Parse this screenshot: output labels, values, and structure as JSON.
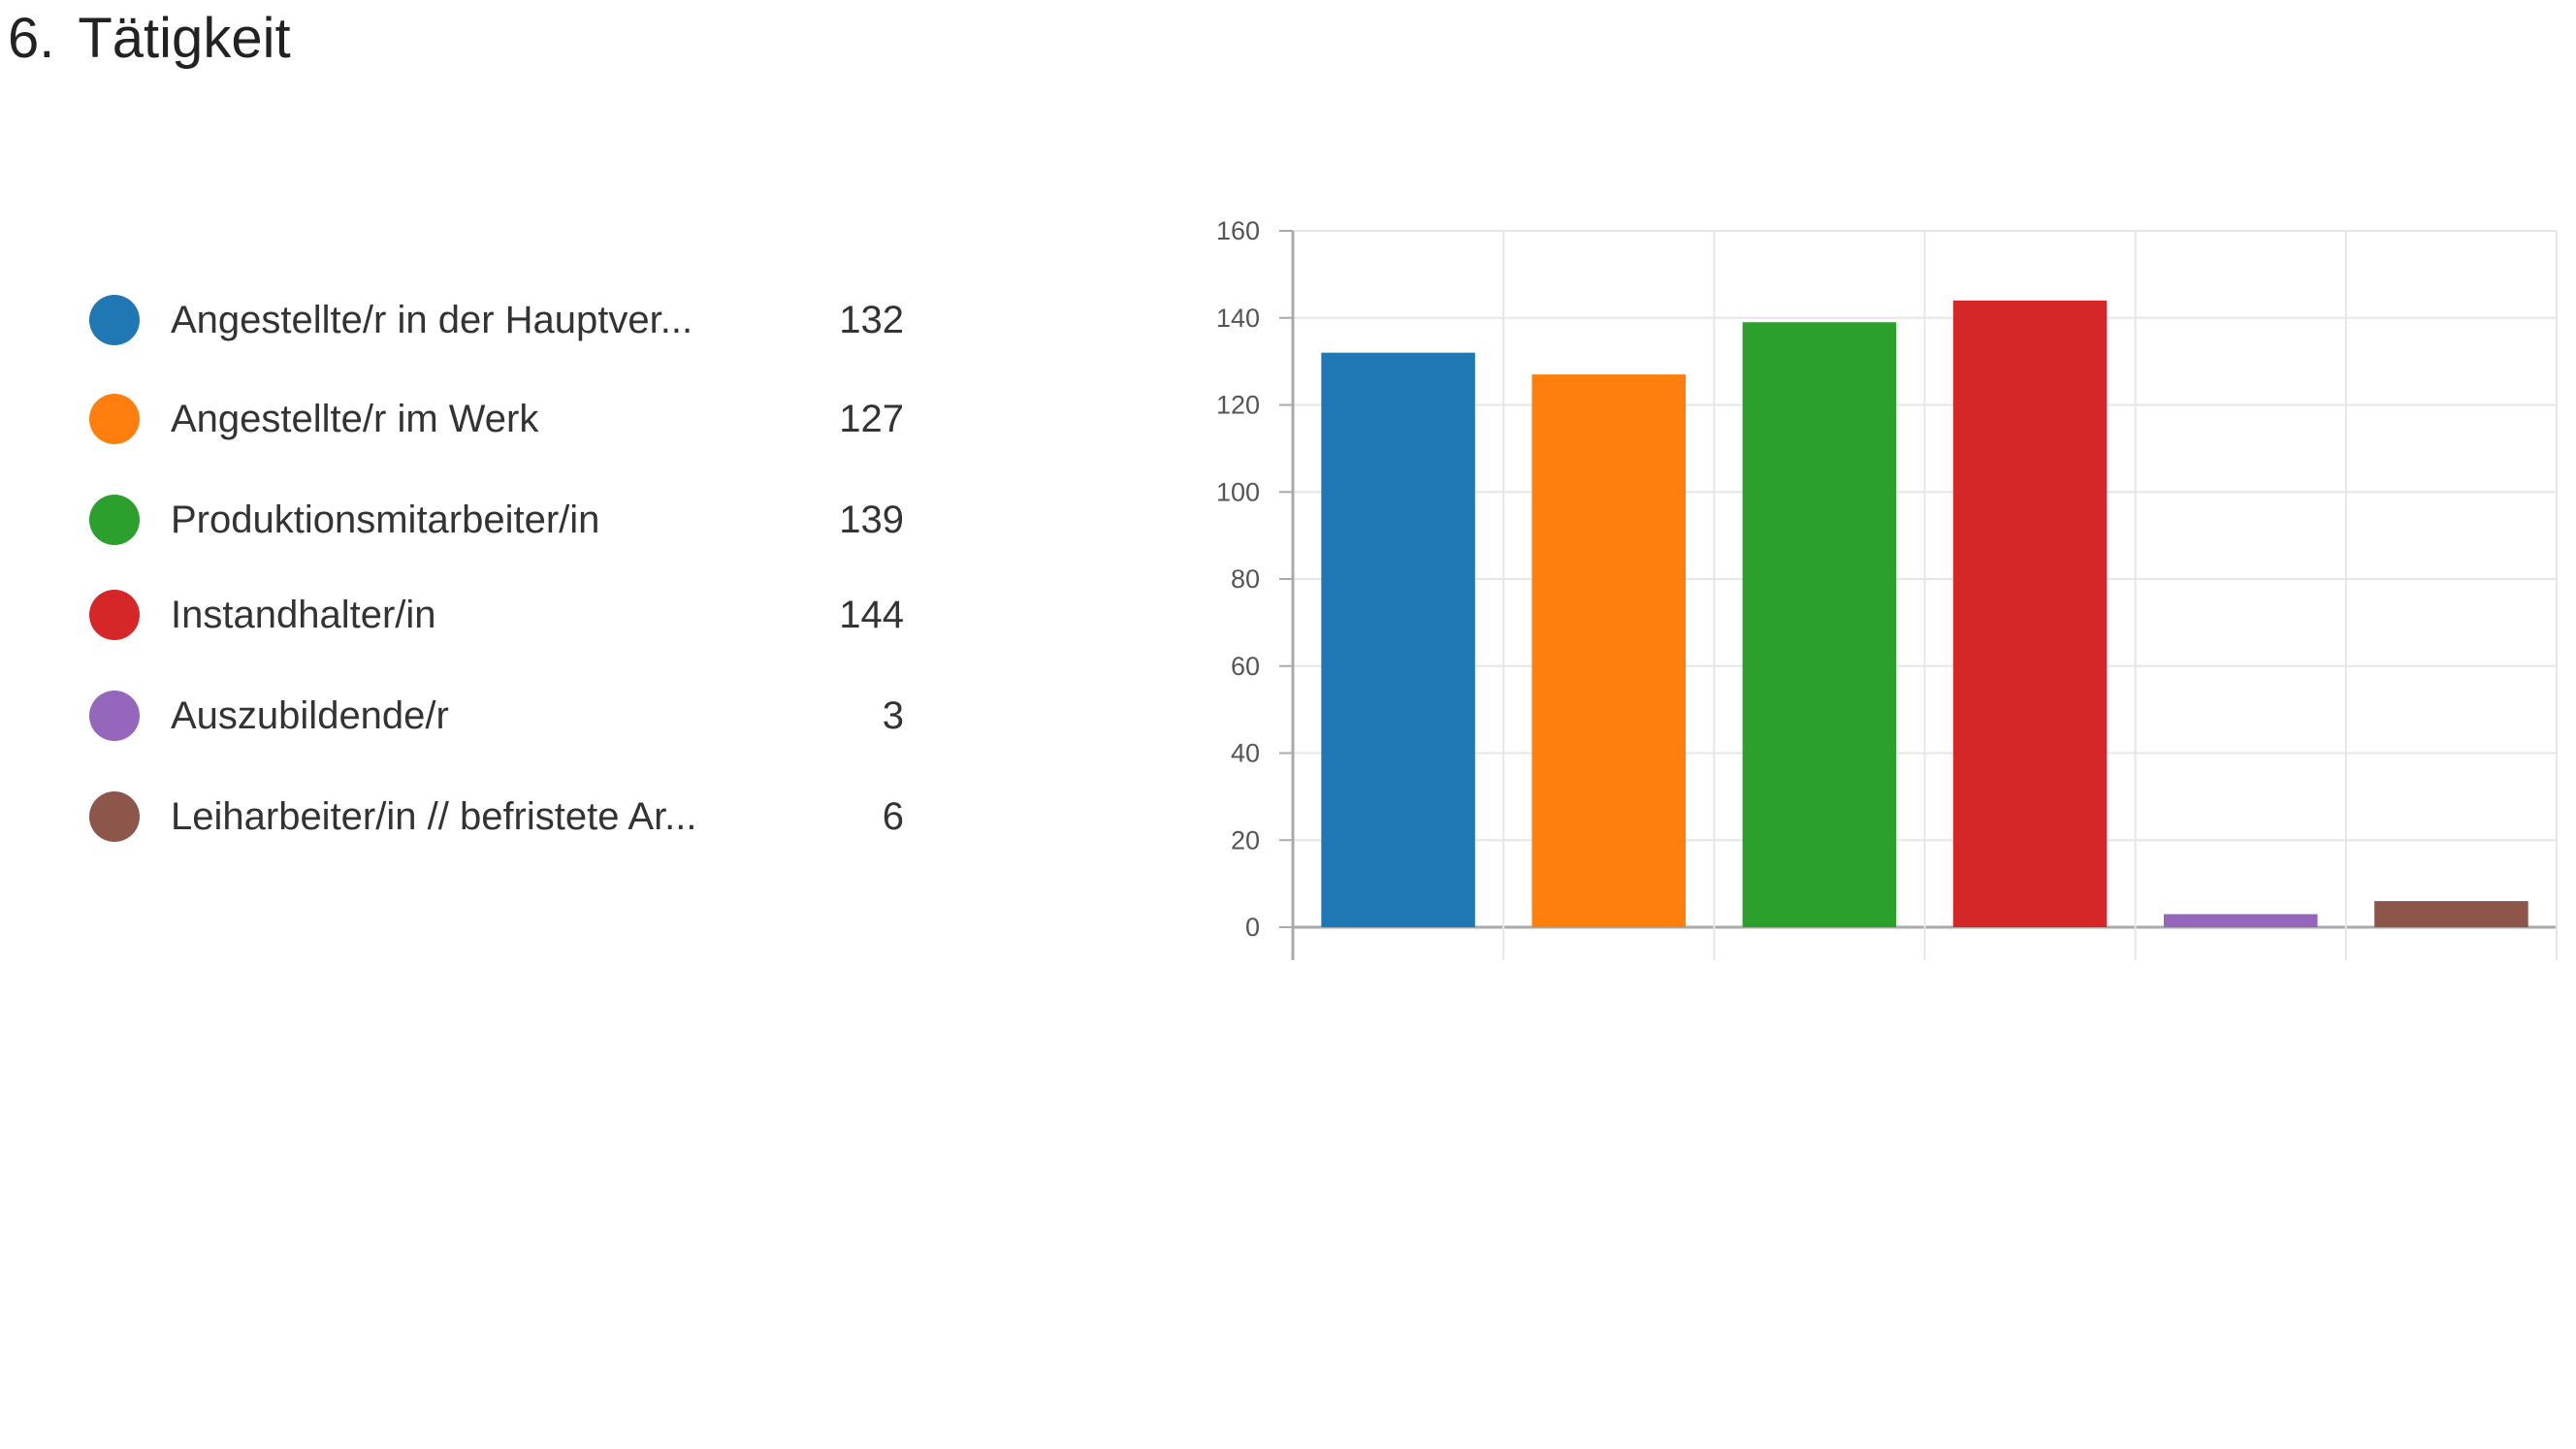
{
  "question": {
    "number": "6.",
    "title": "Tätigkeit"
  },
  "colors": {
    "blue": "#1f77b4",
    "orange": "#ff7f0e",
    "green": "#2ca02c",
    "red": "#d62728",
    "purple": "#9467bd",
    "brown": "#8c564b",
    "grid": "#e6e6e6",
    "axis": "#aaaaaa"
  },
  "legend": [
    {
      "label": "Angestellte/r in der Hauptver...",
      "count": "132"
    },
    {
      "label": "Angestellte/r im Werk",
      "count": "127"
    },
    {
      "label": "Produktionsmitarbeiter/in",
      "count": "139"
    },
    {
      "label": "Instandhalter/in",
      "count": "144"
    },
    {
      "label": "Auszubildende/r",
      "count": "3"
    },
    {
      "label": "Leiharbeiter/in // befristete Ar...",
      "count": "6"
    }
  ],
  "chart_data": {
    "type": "bar",
    "categories": [
      "Angestellte/r in der Hauptver...",
      "Angestellte/r im Werk",
      "Produktionsmitarbeiter/in",
      "Instandhalter/in",
      "Auszubildende/r",
      "Leiharbeiter/in // befristete Ar..."
    ],
    "values": [
      132,
      127,
      139,
      144,
      3,
      6
    ],
    "colors": [
      "#1f77b4",
      "#ff7f0e",
      "#2ca02c",
      "#d62728",
      "#9467bd",
      "#8c564b"
    ],
    "yticks": [
      0,
      20,
      40,
      60,
      80,
      100,
      120,
      140,
      160
    ],
    "ylim": [
      0,
      160
    ],
    "grid": true,
    "legend_position": "left"
  }
}
